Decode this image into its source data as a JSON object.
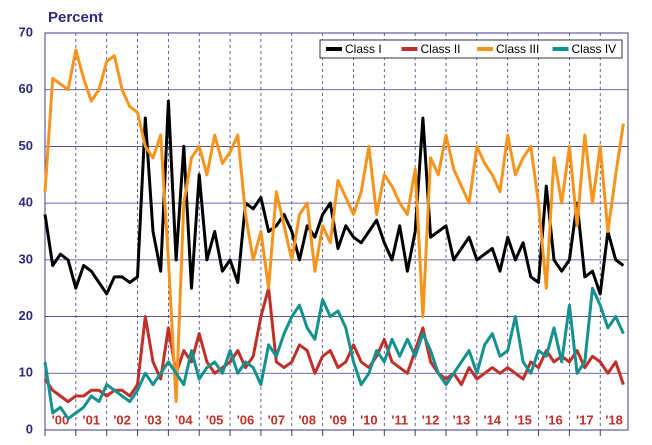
{
  "chart_data": {
    "type": "line",
    "y_label": "Percent",
    "x": [
      2000,
      2000.25,
      2000.5,
      2000.75,
      2001,
      2001.25,
      2001.5,
      2001.75,
      2002,
      2002.25,
      2002.5,
      2002.75,
      2003,
      2003.25,
      2003.5,
      2003.75,
      2004,
      2004.25,
      2004.5,
      2004.75,
      2005,
      2005.25,
      2005.5,
      2005.75,
      2006,
      2006.25,
      2006.5,
      2006.75,
      2007,
      2007.25,
      2007.5,
      2007.75,
      2008,
      2008.25,
      2008.5,
      2008.75,
      2009,
      2009.25,
      2009.5,
      2009.75,
      2010,
      2010.25,
      2010.5,
      2010.75,
      2011,
      2011.25,
      2011.5,
      2011.75,
      2012,
      2012.25,
      2012.5,
      2012.75,
      2013,
      2013.25,
      2013.5,
      2013.75,
      2014,
      2014.25,
      2014.5,
      2014.75,
      2015,
      2015.25,
      2015.5,
      2015.75,
      2016,
      2016.25,
      2016.5,
      2016.75,
      2017,
      2017.25,
      2017.5,
      2017.75,
      2018,
      2018.25,
      2018.5,
      2018.75
    ],
    "series": [
      {
        "name": "Class I",
        "color": "#000000",
        "values": [
          38,
          29,
          31,
          30,
          25,
          29,
          28,
          26,
          24,
          27,
          27,
          26,
          27,
          55,
          35,
          28,
          58,
          30,
          50,
          25,
          45,
          30,
          35,
          28,
          30,
          26,
          40,
          39,
          41,
          35,
          36,
          38,
          35,
          30,
          36,
          34,
          38,
          40,
          32,
          36,
          34,
          33,
          35,
          37,
          33,
          30,
          36,
          28,
          35,
          55,
          34,
          35,
          36,
          30,
          32,
          34,
          30,
          31,
          32,
          28,
          34,
          30,
          33,
          27,
          26,
          43,
          30,
          28,
          30,
          40,
          27,
          28,
          24,
          35,
          30,
          29
        ]
      },
      {
        "name": "Class II",
        "color": "#c0302a",
        "values": [
          9,
          7,
          6,
          5,
          6,
          6,
          7,
          7,
          6,
          7,
          7,
          6,
          8,
          20,
          12,
          9,
          18,
          10,
          14,
          12,
          17,
          12,
          10,
          11,
          12,
          14,
          11,
          13,
          20,
          25,
          12,
          11,
          12,
          15,
          14,
          10,
          13,
          14,
          11,
          12,
          15,
          12,
          11,
          13,
          16,
          12,
          11,
          10,
          14,
          18,
          12,
          10,
          9,
          10,
          8,
          11,
          9,
          10,
          11,
          10,
          11,
          10,
          9,
          12,
          11,
          14,
          12,
          13,
          12,
          14,
          11,
          13,
          12,
          10,
          12,
          8
        ]
      },
      {
        "name": "Class III",
        "color": "#f7941d",
        "values": [
          42,
          62,
          61,
          60,
          67,
          62,
          58,
          60,
          65,
          66,
          60,
          57,
          56,
          50,
          48,
          52,
          30,
          5,
          40,
          48,
          50,
          45,
          52,
          47,
          49,
          52,
          38,
          30,
          35,
          25,
          42,
          36,
          30,
          38,
          40,
          28,
          36,
          33,
          44,
          41,
          38,
          42,
          50,
          38,
          45,
          43,
          40,
          38,
          46,
          20,
          48,
          45,
          52,
          46,
          43,
          40,
          50,
          47,
          45,
          42,
          52,
          45,
          48,
          50,
          40,
          25,
          48,
          40,
          50,
          36,
          52,
          40,
          50,
          35,
          45,
          54
        ]
      },
      {
        "name": "Class IV",
        "color": "#15928f",
        "values": [
          12,
          3,
          4,
          2,
          3,
          4,
          6,
          5,
          8,
          7,
          6,
          5,
          7,
          10,
          8,
          10,
          12,
          10,
          8,
          14,
          9,
          11,
          12,
          10,
          14,
          10,
          12,
          11,
          8,
          15,
          13,
          17,
          20,
          22,
          18,
          16,
          23,
          20,
          21,
          18,
          12,
          8,
          10,
          14,
          12,
          16,
          13,
          16,
          13,
          17,
          14,
          10,
          8,
          10,
          12,
          14,
          10,
          15,
          17,
          13,
          14,
          20,
          12,
          10,
          14,
          13,
          18,
          12,
          22,
          10,
          12,
          25,
          22,
          18,
          20,
          17
        ]
      }
    ],
    "xlim": [
      2000,
      2018.9
    ],
    "xticks": [
      {
        "value": 2000,
        "label": "'00"
      },
      {
        "value": 2001,
        "label": "'01"
      },
      {
        "value": 2002,
        "label": "'02"
      },
      {
        "value": 2003,
        "label": "'03"
      },
      {
        "value": 2004,
        "label": "'04"
      },
      {
        "value": 2005,
        "label": "'05"
      },
      {
        "value": 2006,
        "label": "'06"
      },
      {
        "value": 2007,
        "label": "'07"
      },
      {
        "value": 2008,
        "label": "'08"
      },
      {
        "value": 2009,
        "label": "'09"
      },
      {
        "value": 2010,
        "label": "'10"
      },
      {
        "value": 2011,
        "label": "'11"
      },
      {
        "value": 2012,
        "label": "'12"
      },
      {
        "value": 2013,
        "label": "'13"
      },
      {
        "value": 2014,
        "label": "'14"
      },
      {
        "value": 2015,
        "label": "'15"
      },
      {
        "value": 2016,
        "label": "'16"
      },
      {
        "value": 2017,
        "label": "'17"
      },
      {
        "value": 2018,
        "label": "'18"
      }
    ],
    "ylim": [
      0,
      70
    ],
    "yticks": [
      0,
      10,
      20,
      30,
      40,
      50,
      60,
      70
    ],
    "grid": true,
    "legend": "top-right"
  }
}
